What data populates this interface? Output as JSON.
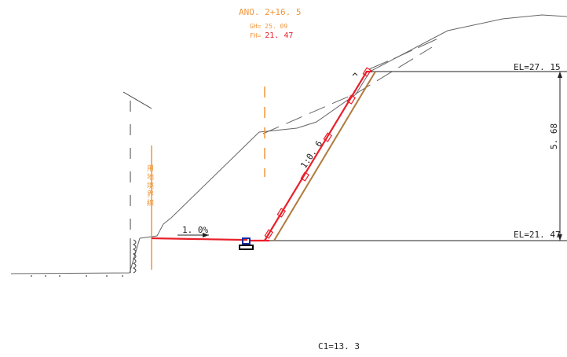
{
  "station": "ANO. 2+16. 5",
  "gh": {
    "label": "GH=",
    "value": "25. 09"
  },
  "fh": {
    "label": "FH=",
    "value": "21. 47"
  },
  "el_top": "EL=27. 15",
  "el_bottom": "EL=21. 47",
  "height_dim": "5. 68",
  "slope_ratio": "1:0. 6",
  "road_grade": "1. 0%",
  "boundary_label": "用地境界線",
  "cut_area": "C1=13. 3",
  "colors": {
    "ground_line": "#555555",
    "design_line": "#e8202a",
    "annotation": "#f0963c",
    "backfill": "#b07a3c",
    "drainage": "#1a2aa0"
  }
}
